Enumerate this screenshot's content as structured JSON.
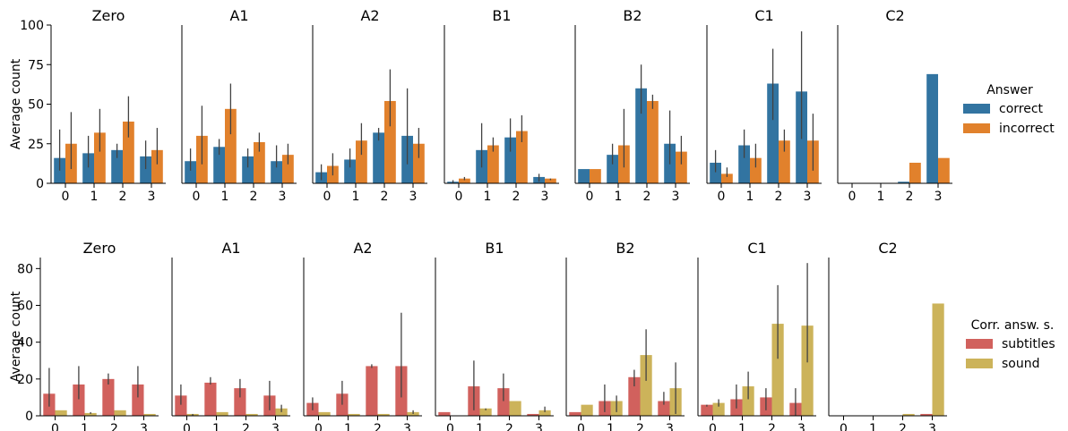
{
  "chart_data": [
    {
      "type": "bar",
      "ylabel": "Average count",
      "ylim": [
        0,
        100
      ],
      "yticks": [
        0,
        25,
        50,
        75,
        100
      ],
      "categories": [
        "0",
        "1",
        "2",
        "3"
      ],
      "legend": {
        "title": "Answer",
        "placement": "right"
      },
      "series_meta": [
        {
          "name": "correct",
          "color": "#3274a1"
        },
        {
          "name": "incorrect",
          "color": "#e1812c"
        }
      ],
      "panels": [
        {
          "title": "Zero",
          "values": [
            [
              16,
              25
            ],
            [
              19,
              32
            ],
            [
              21,
              39
            ],
            [
              17,
              21
            ]
          ],
          "errors": [
            [
              [
                8,
                34
              ],
              [
                9,
                45
              ]
            ],
            [
              [
                10,
                30
              ],
              [
                20,
                47
              ]
            ],
            [
              [
                16,
                25
              ],
              [
                29,
                55
              ]
            ],
            [
              [
                9,
                27
              ],
              [
                12,
                35
              ]
            ]
          ]
        },
        {
          "title": "A1",
          "values": [
            [
              14,
              30
            ],
            [
              23,
              47
            ],
            [
              17,
              26
            ],
            [
              14,
              18
            ]
          ],
          "errors": [
            [
              [
                8,
                22
              ],
              [
                12,
                49
              ]
            ],
            [
              [
                18,
                28
              ],
              [
                31,
                63
              ]
            ],
            [
              [
                10,
                22
              ],
              [
                20,
                32
              ]
            ],
            [
              [
                10,
                24
              ],
              [
                12,
                25
              ]
            ]
          ]
        },
        {
          "title": "A2",
          "values": [
            [
              7,
              11
            ],
            [
              15,
              27
            ],
            [
              32,
              52
            ],
            [
              30,
              25
            ]
          ],
          "errors": [
            [
              [
                2,
                12
              ],
              [
                5,
                19
              ]
            ],
            [
              [
                10,
                22
              ],
              [
                18,
                38
              ]
            ],
            [
              [
                27,
                35
              ],
              [
                36,
                72
              ]
            ],
            [
              [
                12,
                60
              ],
              [
                16,
                35
              ]
            ]
          ]
        },
        {
          "title": "B1",
          "values": [
            [
              1,
              3
            ],
            [
              21,
              24
            ],
            [
              29,
              33
            ],
            [
              4,
              3
            ]
          ],
          "errors": [
            [
              [
                0,
                2
              ],
              [
                2,
                4
              ]
            ],
            [
              [
                10,
                38
              ],
              [
                20,
                29
              ]
            ],
            [
              [
                20,
                41
              ],
              [
                26,
                43
              ]
            ],
            [
              [
                1,
                6
              ],
              [
                2,
                3
              ]
            ]
          ]
        },
        {
          "title": "B2",
          "values": [
            [
              9,
              9
            ],
            [
              18,
              24
            ],
            [
              60,
              52
            ],
            [
              25,
              20
            ]
          ],
          "errors": [
            [
              [
                9,
                9
              ],
              [
                9,
                9
              ]
            ],
            [
              [
                12,
                25
              ],
              [
                10,
                47
              ]
            ],
            [
              [
                44,
                75
              ],
              [
                47,
                56
              ]
            ],
            [
              [
                12,
                46
              ],
              [
                12,
                30
              ]
            ]
          ]
        },
        {
          "title": "C1",
          "values": [
            [
              13,
              6
            ],
            [
              24,
              16
            ],
            [
              63,
              27
            ],
            [
              58,
              27
            ]
          ],
          "errors": [
            [
              [
                7,
                21
              ],
              [
                4,
                10
              ]
            ],
            [
              [
                16,
                34
              ],
              [
                10,
                25
              ]
            ],
            [
              [
                40,
                85
              ],
              [
                20,
                34
              ]
            ],
            [
              [
                28,
                96
              ],
              [
                8,
                44
              ]
            ]
          ]
        },
        {
          "title": "C2",
          "values": [
            [
              0,
              0
            ],
            [
              0,
              0
            ],
            [
              1,
              13
            ],
            [
              69,
              16
            ]
          ],
          "errors": [
            [
              [
                0,
                0
              ],
              [
                0,
                0
              ]
            ],
            [
              [
                0,
                0
              ],
              [
                0,
                0
              ]
            ],
            [
              [
                1,
                1
              ],
              [
                13,
                13
              ]
            ],
            [
              [
                69,
                69
              ],
              [
                16,
                16
              ]
            ]
          ]
        }
      ]
    },
    {
      "type": "bar",
      "ylabel": "Average count",
      "ylim": [
        0,
        86
      ],
      "yticks": [
        0,
        20,
        40,
        60,
        80
      ],
      "categories": [
        "0",
        "1",
        "2",
        "3"
      ],
      "legend": {
        "title": "Corr. answ. s.",
        "placement": "right"
      },
      "series_meta": [
        {
          "name": "subtitles",
          "color": "#d1615d"
        },
        {
          "name": "sound",
          "color": "#ccb35a"
        }
      ],
      "panels": [
        {
          "title": "Zero",
          "values": [
            [
              12,
              3
            ],
            [
              17,
              1.5
            ],
            [
              20,
              3
            ],
            [
              17,
              1
            ]
          ],
          "errors": [
            [
              [
                5,
                26
              ],
              [
                3,
                3
              ]
            ],
            [
              [
                9,
                27
              ],
              [
                1,
                2
              ]
            ],
            [
              [
                17,
                23
              ],
              [
                3,
                3
              ]
            ],
            [
              [
                10,
                27
              ],
              [
                1,
                1
              ]
            ]
          ]
        },
        {
          "title": "A1",
          "values": [
            [
              11,
              1
            ],
            [
              18,
              2
            ],
            [
              15,
              1
            ],
            [
              11,
              4
            ]
          ],
          "errors": [
            [
              [
                6,
                17
              ],
              [
                0,
                1
              ]
            ],
            [
              [
                17,
                21
              ],
              [
                2,
                2
              ]
            ],
            [
              [
                10,
                20
              ],
              [
                1,
                1
              ]
            ],
            [
              [
                3,
                19
              ],
              [
                2,
                6
              ]
            ]
          ]
        },
        {
          "title": "A2",
          "values": [
            [
              7,
              2
            ],
            [
              12,
              1
            ],
            [
              27,
              1
            ],
            [
              27,
              2
            ]
          ],
          "errors": [
            [
              [
                3,
                10
              ],
              [
                2,
                2
              ]
            ],
            [
              [
                6,
                19
              ],
              [
                1,
                1
              ]
            ],
            [
              [
                26,
                28
              ],
              [
                1,
                1
              ]
            ],
            [
              [
                10,
                56
              ],
              [
                1,
                3
              ]
            ]
          ]
        },
        {
          "title": "B1",
          "values": [
            [
              2,
              0
            ],
            [
              16,
              4
            ],
            [
              15,
              8
            ],
            [
              1,
              3
            ]
          ],
          "errors": [
            [
              [
                2,
                2
              ],
              [
                0,
                0
              ]
            ],
            [
              [
                3,
                30
              ],
              [
                3,
                4
              ]
            ],
            [
              [
                8,
                23
              ],
              [
                8,
                8
              ]
            ],
            [
              [
                1,
                1
              ],
              [
                2,
                5
              ]
            ]
          ]
        },
        {
          "title": "B2",
          "values": [
            [
              2,
              6
            ],
            [
              8,
              8
            ],
            [
              21,
              33
            ],
            [
              8,
              15
            ]
          ],
          "errors": [
            [
              [
                2,
                2
              ],
              [
                6,
                6
              ]
            ],
            [
              [
                2,
                17
              ],
              [
                2,
                11
              ]
            ],
            [
              [
                16,
                25
              ],
              [
                19,
                47
              ]
            ],
            [
              [
                6,
                13
              ],
              [
                1,
                29
              ]
            ]
          ]
        },
        {
          "title": "C1",
          "values": [
            [
              6,
              7
            ],
            [
              9,
              16
            ],
            [
              10,
              50
            ],
            [
              7,
              49
            ]
          ],
          "errors": [
            [
              [
                5,
                6
              ],
              [
                5,
                9
              ]
            ],
            [
              [
                4,
                17
              ],
              [
                9,
                24
              ]
            ],
            [
              [
                3,
                15
              ],
              [
                31,
                71
              ]
            ],
            [
              [
                0,
                15
              ],
              [
                29,
                83
              ]
            ]
          ]
        },
        {
          "title": "C2",
          "values": [
            [
              0,
              0
            ],
            [
              0,
              0
            ],
            [
              0,
              1
            ],
            [
              1,
              61
            ]
          ],
          "errors": [
            [
              [
                0,
                0
              ],
              [
                0,
                0
              ]
            ],
            [
              [
                0,
                0
              ],
              [
                0,
                0
              ]
            ],
            [
              [
                0,
                0
              ],
              [
                1,
                1
              ]
            ],
            [
              [
                1,
                1
              ],
              [
                61,
                61
              ]
            ]
          ]
        }
      ]
    }
  ]
}
